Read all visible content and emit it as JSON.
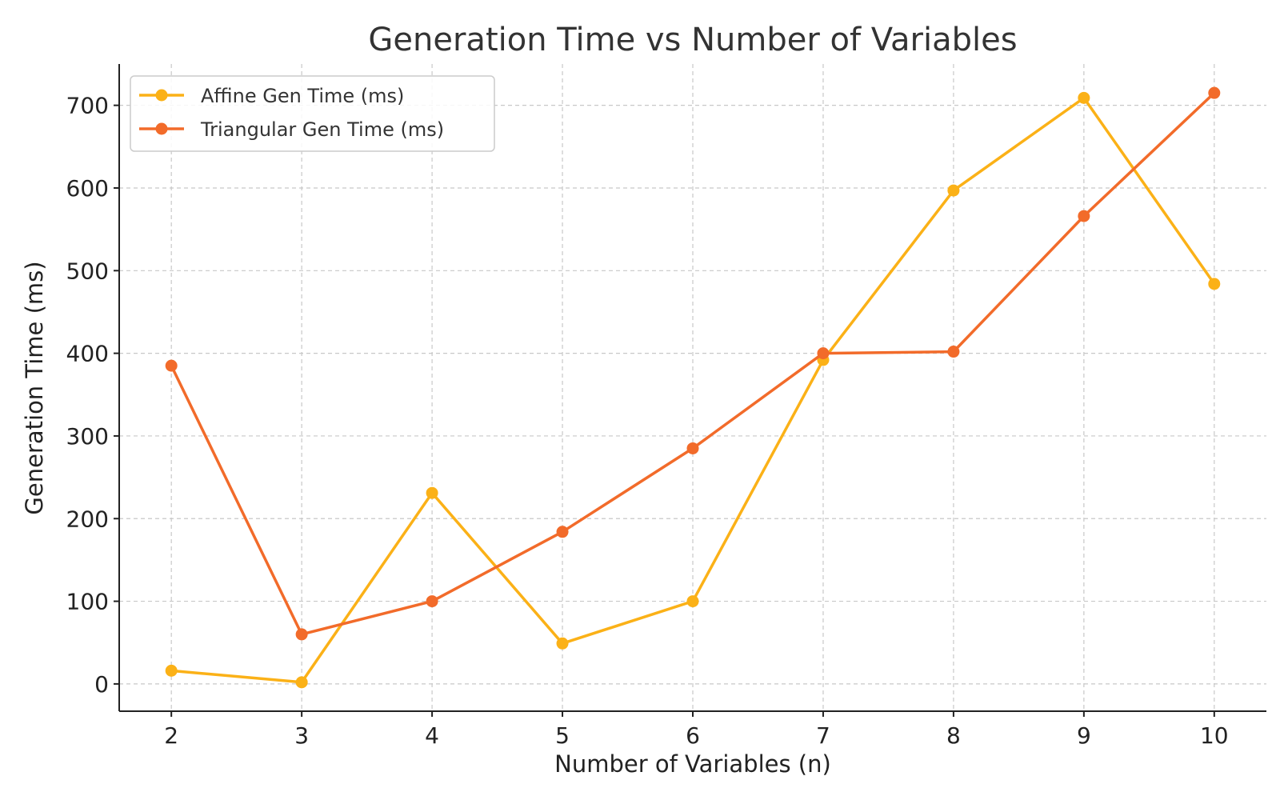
{
  "chart_data": {
    "type": "line",
    "title": "Generation Time vs Number of Variables",
    "xlabel": "Number of Variables (n)",
    "ylabel": "Generation Time (ms)",
    "x": [
      2,
      3,
      4,
      5,
      6,
      7,
      8,
      9,
      10
    ],
    "xlim": [
      1.6,
      10.4
    ],
    "ylim": [
      -33,
      750
    ],
    "xticks": [
      2,
      3,
      4,
      5,
      6,
      7,
      8,
      9,
      10
    ],
    "yticks": [
      0,
      100,
      200,
      300,
      400,
      500,
      600,
      700
    ],
    "grid": true,
    "legend_position": "top-left",
    "series": [
      {
        "name": "Affine Gen Time (ms)",
        "color": "#FBB117",
        "values": [
          16,
          2,
          231,
          49,
          100,
          392,
          597,
          709,
          484
        ]
      },
      {
        "name": "Triangular Gen Time (ms)",
        "color": "#F26B2A",
        "values": [
          385,
          60,
          100,
          184,
          285,
          400,
          402,
          566,
          715
        ]
      }
    ]
  }
}
